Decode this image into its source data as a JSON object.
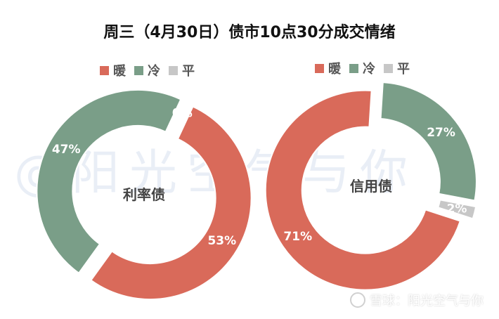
{
  "title": "周三（4月30日）债市10点30分成交情绪",
  "watermark": "@阳光空气与你",
  "footer": {
    "text": "雪球：阳光空气与你"
  },
  "colors": {
    "warm": "#d96a5a",
    "cold": "#7a9e88",
    "flat": "#c7c7c7"
  },
  "chart_data": [
    {
      "type": "pie",
      "center_label": "利率债",
      "legend": [
        "暖",
        "冷",
        "平"
      ],
      "slices": [
        {
          "label": "暖",
          "value": 53,
          "text": "53%"
        },
        {
          "label": "冷",
          "value": 47,
          "text": "47%"
        },
        {
          "label": "平",
          "value": 0,
          "text": "0%"
        }
      ]
    },
    {
      "type": "pie",
      "center_label": "信用债",
      "legend": [
        "暖",
        "冷",
        "平"
      ],
      "slices": [
        {
          "label": "暖",
          "value": 71,
          "text": "71%"
        },
        {
          "label": "冷",
          "value": 27,
          "text": "27%"
        },
        {
          "label": "平",
          "value": 2,
          "text": "2%"
        }
      ]
    }
  ]
}
